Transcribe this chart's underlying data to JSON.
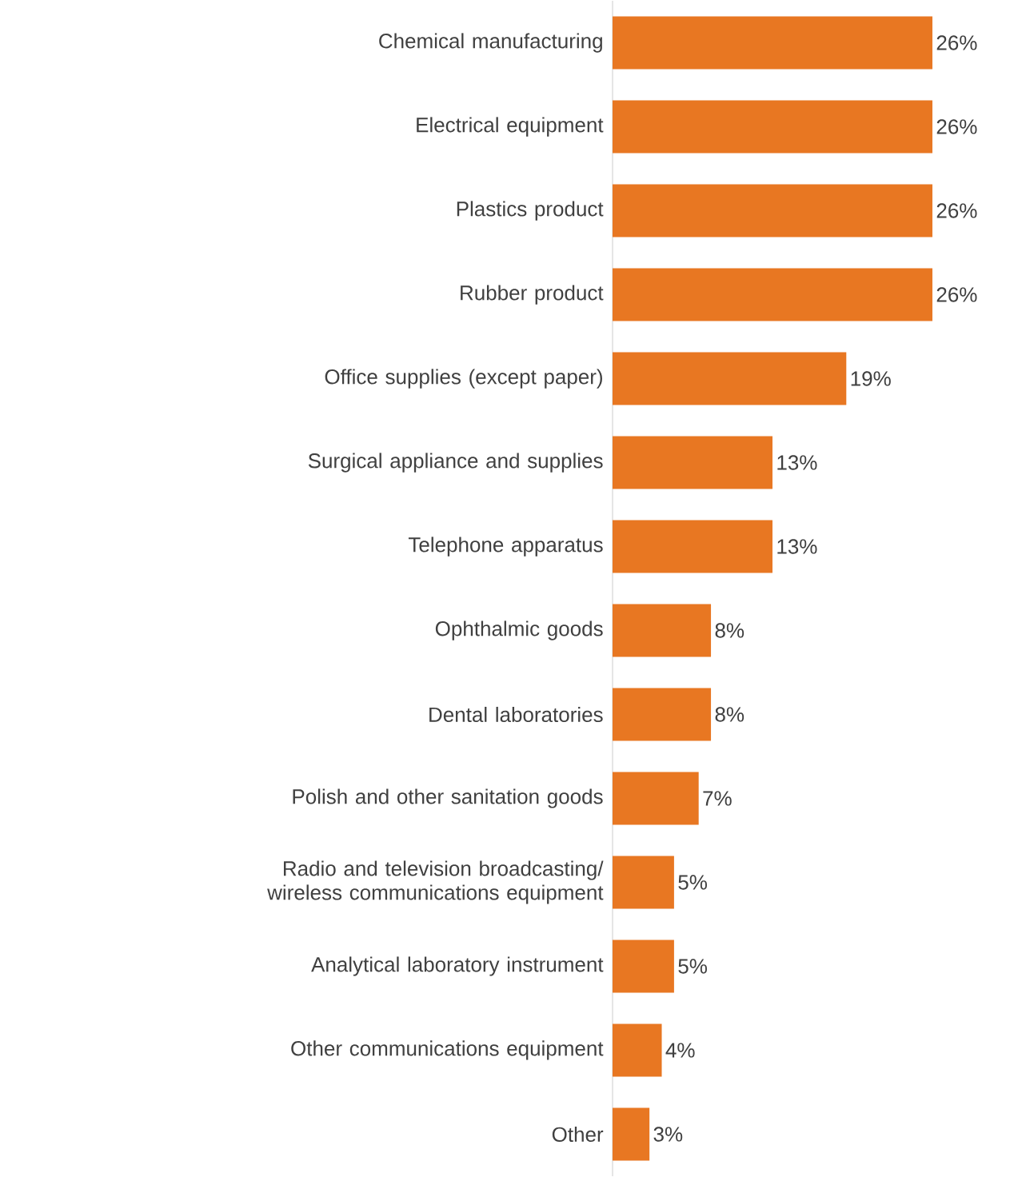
{
  "chart_data": {
    "type": "bar",
    "orientation": "horizontal",
    "color": "#e87722",
    "categories": [
      "Chemical manufacturing",
      "Electrical equipment",
      "Plastics product",
      "Rubber product",
      "Office supplies (except paper)",
      "Surgical appliance and supplies",
      "Telephone apparatus",
      "Ophthalmic goods",
      "Dental laboratories",
      "Polish and other sanitation goods",
      "Radio and television broadcasting/ wireless communications equipment",
      "Analytical laboratory instrument",
      "Other communications equipment",
      "Other"
    ],
    "values": [
      26,
      26,
      26,
      26,
      19,
      13,
      13,
      8,
      8,
      7,
      5,
      5,
      4,
      3
    ],
    "value_labels": [
      "26%",
      "26%",
      "26%",
      "26%",
      "19%",
      "13%",
      "13%",
      "8%",
      "8%",
      "7%",
      "5%",
      "5%",
      "4%",
      "3%"
    ]
  }
}
